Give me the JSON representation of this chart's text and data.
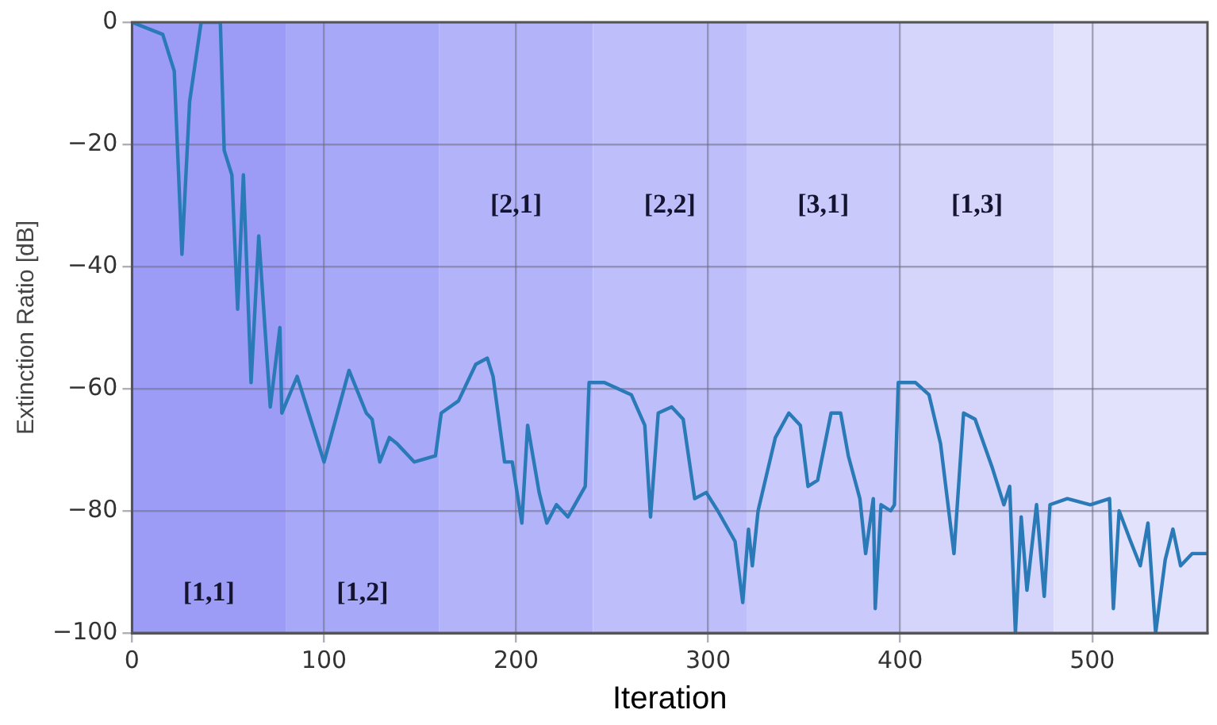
{
  "chart_data": {
    "type": "line",
    "xlabel": "Iteration",
    "ylabel": "Extinction Ratio [dB]",
    "xlim": [
      0,
      560
    ],
    "xticks": [
      0,
      100,
      200,
      300,
      400,
      500
    ],
    "ylim": [
      -100,
      0
    ],
    "yticks": [
      -100,
      -80,
      -60,
      -40,
      -20,
      0
    ],
    "grid": true,
    "legend": false,
    "marker": "none",
    "line_style": "solid",
    "series": [
      {
        "color": "#2a7ab8",
        "x": [
          0,
          16,
          22,
          26,
          30,
          36,
          46,
          48,
          52,
          55,
          58,
          62,
          66,
          72,
          77,
          78,
          86,
          100,
          113,
          122,
          125,
          129,
          134,
          138,
          147,
          158,
          161,
          170,
          179,
          185,
          188,
          194,
          198,
          203,
          206,
          212,
          216,
          221,
          227,
          236,
          238,
          246,
          260,
          267,
          270,
          274,
          281,
          287,
          293,
          299,
          305,
          314,
          318,
          321,
          323,
          326,
          335,
          342,
          348,
          352,
          357,
          364,
          369,
          373,
          379,
          382,
          386,
          387,
          390,
          395,
          397,
          399,
          408,
          415,
          421,
          428,
          433,
          439,
          448,
          454,
          457,
          460,
          463,
          466,
          471,
          475,
          478,
          487,
          499,
          509,
          511,
          514,
          520,
          525,
          529,
          533,
          538,
          542,
          546,
          552,
          560
        ],
        "values": [
          0,
          -2,
          -8,
          -38,
          -13,
          0,
          0,
          -21,
          -25,
          -47,
          -25,
          -59,
          -35,
          -63,
          -50,
          -64,
          -58,
          -72,
          -57,
          -64,
          -65,
          -72,
          -68,
          -69,
          -72,
          -71,
          -64,
          -62,
          -56,
          -55,
          -58,
          -72,
          -72,
          -82,
          -66,
          -77,
          -82,
          -79,
          -81,
          -76,
          -59,
          -59,
          -61,
          -66,
          -81,
          -64,
          -63,
          -65,
          -78,
          -77,
          -80,
          -85,
          -95,
          -83,
          -89,
          -80,
          -68,
          -64,
          -66,
          -76,
          -75,
          -64,
          -64,
          -71,
          -78,
          -87,
          -78,
          -96,
          -79,
          -80,
          -79,
          -59,
          -59,
          -61,
          -69,
          -87,
          -64,
          -65,
          -73,
          -79,
          -76,
          -100,
          -81,
          -93,
          -79,
          -94,
          -79,
          -78,
          -79,
          -78,
          -96,
          -80,
          -85,
          -89,
          -82,
          -100,
          -88,
          -83,
          -89,
          -87,
          -87
        ]
      }
    ],
    "bands": [
      {
        "axis": "x",
        "from": 0,
        "to": 80,
        "color": "#9c9cf6",
        "label": "[1,1]"
      },
      {
        "axis": "x",
        "from": 80,
        "to": 160,
        "color": "#a8a8f8",
        "label": "[1,2]"
      },
      {
        "axis": "x",
        "from": 160,
        "to": 240,
        "color": "#b3b3f9",
        "label": "[2,1]"
      },
      {
        "axis": "x",
        "from": 240,
        "to": 320,
        "color": "#bebefa",
        "label": "[2,2]"
      },
      {
        "axis": "x",
        "from": 320,
        "to": 400,
        "color": "#c9c9fb",
        "label": "[3,1]"
      },
      {
        "axis": "x",
        "from": 400,
        "to": 480,
        "color": "#d5d5fc",
        "label": "[1,3]"
      },
      {
        "axis": "x",
        "from": 480,
        "to": 560,
        "color": "#e2e2fd"
      }
    ]
  }
}
